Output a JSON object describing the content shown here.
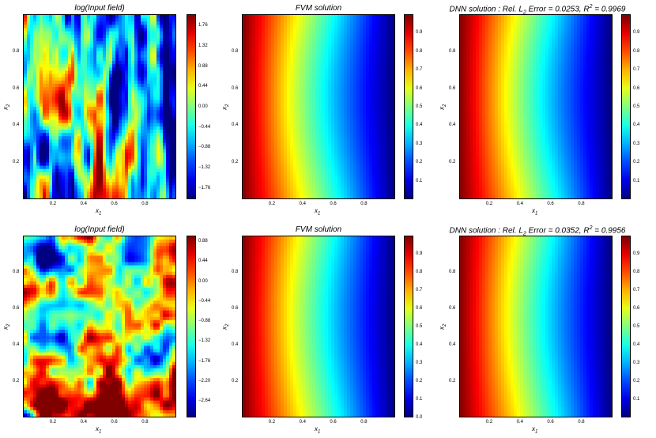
{
  "chart_data": [
    {
      "type": "heatmap",
      "title": "log(Input field)",
      "xlabel": "x1",
      "ylabel": "x2",
      "xlim": [
        0,
        1
      ],
      "ylim": [
        0,
        1
      ],
      "xticks": [
        "0.2",
        "0.4",
        "0.6",
        "0.8"
      ],
      "yticks": [
        "0.2",
        "0.4",
        "0.6",
        "0.8"
      ],
      "colormap": "jet",
      "colorbar": {
        "vmin": -2.0,
        "vmax": 2.0,
        "ticks": [
          "1.76",
          "1.32",
          "0.88",
          "0.44",
          "0.00",
          "−0.44",
          "−0.88",
          "−1.32",
          "−1.76"
        ]
      },
      "field": "vertically elongated high/low streaks; max near x1≈0.5, x2≈0.1"
    },
    {
      "type": "heatmap",
      "title": "FVM solution",
      "xlabel": "x1",
      "ylabel": "x2",
      "xlim": [
        0,
        1
      ],
      "ylim": [
        0,
        1
      ],
      "xticks": [
        "0.2",
        "0.4",
        "0.6",
        "0.8"
      ],
      "yticks": [
        "0.2",
        "0.4",
        "0.6",
        "0.8"
      ],
      "colormap": "jet",
      "colorbar": {
        "vmin": 0.0,
        "vmax": 1.0,
        "ticks": [
          "0.9",
          "0.8",
          "0.7",
          "0.6",
          "0.5",
          "0.4",
          "0.3",
          "0.2",
          "0.1"
        ]
      },
      "field": "decreases from 1 at x1=0 to 0 at x1=1"
    },
    {
      "type": "heatmap",
      "title": "DNN solution : Rel. L2 Error = 0.0253, R2 = 0.9969",
      "rel_l2_error": 0.0253,
      "r2": 0.9969,
      "xlabel": "x1",
      "ylabel": "x2",
      "xlim": [
        0,
        1
      ],
      "ylim": [
        0,
        1
      ],
      "xticks": [
        "0.2",
        "0.4",
        "0.6",
        "0.8"
      ],
      "yticks": [
        "0.2",
        "0.4",
        "0.6",
        "0.8"
      ],
      "colormap": "jet",
      "colorbar": {
        "vmin": 0.0,
        "vmax": 1.0,
        "ticks": [
          "0.9",
          "0.8",
          "0.7",
          "0.6",
          "0.5",
          "0.4",
          "0.3",
          "0.2",
          "0.1"
        ]
      },
      "field": "decreases from 1 at x1=0 to 0 at x1=1"
    },
    {
      "type": "heatmap",
      "title": "log(Input field)",
      "xlabel": "x1",
      "ylabel": "x2",
      "xlim": [
        0,
        1
      ],
      "ylim": [
        0,
        1
      ],
      "xticks": [
        "0.2",
        "0.4",
        "0.6",
        "0.8"
      ],
      "yticks": [
        "0.2",
        "0.4",
        "0.6",
        "0.8"
      ],
      "colormap": "jet",
      "colorbar": {
        "vmin": -3.0,
        "vmax": 1.0,
        "ticks": [
          "0.88",
          "0.44",
          "0.00",
          "−0.44",
          "−0.88",
          "−1.32",
          "−1.76",
          "−2.20",
          "−2.64"
        ]
      },
      "field": "isotropic patchy random field; low top-left, high bottom and top-right"
    },
    {
      "type": "heatmap",
      "title": "FVM solution",
      "xlabel": "x1",
      "ylabel": "x2",
      "xlim": [
        0,
        1
      ],
      "ylim": [
        0,
        1
      ],
      "xticks": [
        "0.2",
        "0.4",
        "0.6",
        "0.8"
      ],
      "yticks": [
        "0.2",
        "0.4",
        "0.6",
        "0.8"
      ],
      "colormap": "jet",
      "colorbar": {
        "vmin": 0.0,
        "vmax": 1.0,
        "ticks": [
          "0.9",
          "0.8",
          "0.7",
          "0.6",
          "0.5",
          "0.4",
          "0.3",
          "0.2",
          "0.1",
          "0.0"
        ]
      },
      "field": "decreases from 1 at x1=0 to 0 at x1=1"
    },
    {
      "type": "heatmap",
      "title": "DNN solution : Rel. L2 Error = 0.0352, R2 = 0.9956",
      "rel_l2_error": 0.0352,
      "r2": 0.9956,
      "xlabel": "x1",
      "ylabel": "x2",
      "xlim": [
        0,
        1
      ],
      "ylim": [
        0,
        1
      ],
      "xticks": [
        "0.2",
        "0.4",
        "0.6",
        "0.8"
      ],
      "yticks": [
        "0.2",
        "0.4",
        "0.6",
        "0.8"
      ],
      "colormap": "jet",
      "colorbar": {
        "vmin": 0.0,
        "vmax": 1.0,
        "ticks": [
          "0.9",
          "0.8",
          "0.7",
          "0.6",
          "0.5",
          "0.4",
          "0.3",
          "0.2",
          "0.1"
        ]
      },
      "field": "decreases from 1 at x1=0 to 0 at x1=1"
    }
  ]
}
